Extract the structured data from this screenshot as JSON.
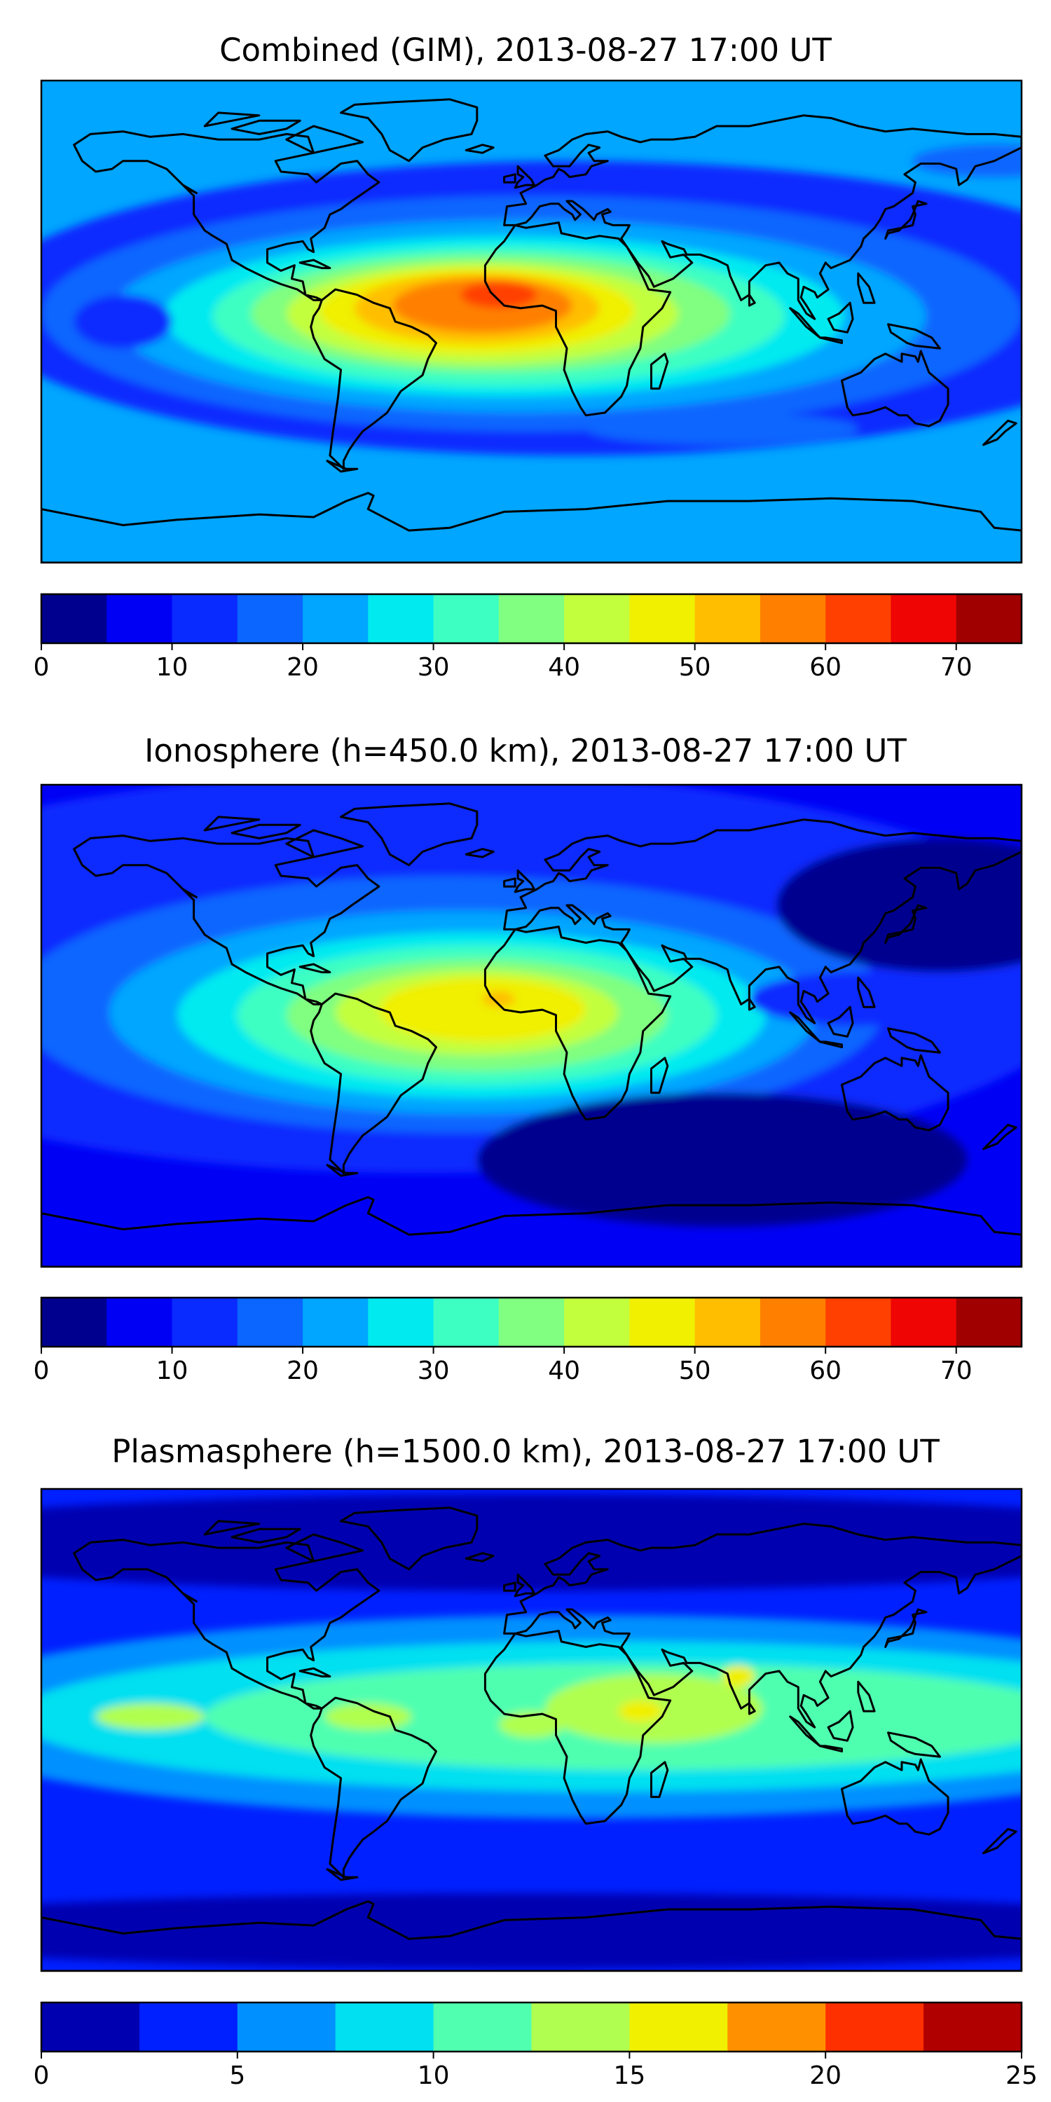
{
  "colors": {
    "jet15": [
      "#00008f",
      "#0000f5",
      "#0a2bff",
      "#0a66ff",
      "#00a6ff",
      "#00eaf0",
      "#3dffc2",
      "#80ff80",
      "#c2ff3d",
      "#f0f000",
      "#ffbf00",
      "#ff8000",
      "#ff4000",
      "#f00505",
      "#a00000"
    ],
    "jet10": [
      "#0000b0",
      "#0020ff",
      "#0090ff",
      "#00e0f0",
      "#50ffb0",
      "#b0ff50",
      "#f0f000",
      "#ff9000",
      "#ff3000",
      "#b00000"
    ]
  },
  "panels": [
    {
      "title": "Combined (GIM), 2013-08-27 17:00 UT",
      "colorbar": {
        "min": 0,
        "max": 75,
        "step": 5,
        "ticks": [
          "0",
          "10",
          "20",
          "30",
          "40",
          "50",
          "60",
          "70"
        ],
        "tick_values": [
          0,
          10,
          20,
          30,
          40,
          50,
          60,
          70
        ],
        "palette": "jet15"
      },
      "field": {
        "background": 4,
        "zones": [
          {
            "level": 2,
            "lon": 15,
            "lat": 5,
            "a_lon": 220,
            "a_lat": 55
          },
          {
            "level": 3,
            "lon": 0,
            "lat": 3,
            "a_lon": 180,
            "a_lat": 44
          },
          {
            "level": 4,
            "lon": -5,
            "lat": 2,
            "a_lon": 150,
            "a_lat": 36
          },
          {
            "level": 5,
            "lon": -10,
            "lat": 2,
            "a_lon": 125,
            "a_lat": 30
          },
          {
            "level": 6,
            "lon": -12,
            "lat": 2,
            "a_lon": 105,
            "a_lat": 26
          },
          {
            "level": 7,
            "lon": -15,
            "lat": 3,
            "a_lon": 88,
            "a_lat": 22
          },
          {
            "level": 8,
            "lon": -18,
            "lat": 3,
            "a_lon": 72,
            "a_lat": 19
          },
          {
            "level": 9,
            "lon": -20,
            "lat": 4,
            "a_lon": 58,
            "a_lat": 16
          },
          {
            "level": 10,
            "lon": -20,
            "lat": 5,
            "a_lon": 45,
            "a_lat": 13
          },
          {
            "level": 11,
            "lon": -18,
            "lat": 6,
            "a_lon": 33,
            "a_lat": 10
          },
          {
            "level": 12,
            "lon": -12,
            "lat": 10,
            "a_lon": 14,
            "a_lat": 5
          },
          {
            "level": 2,
            "lon": -150,
            "lat": 0,
            "a_lon": 18,
            "a_lat": 10
          },
          {
            "level": 3,
            "lon": 70,
            "lat": -40,
            "a_lon": 50,
            "a_lat": 6
          },
          {
            "level": 3,
            "lon": 170,
            "lat": 60,
            "a_lon": 30,
            "a_lat": 6
          }
        ]
      }
    },
    {
      "title": "Ionosphere  (h=450.0 km), 2013-08-27 17:00 UT",
      "colorbar": {
        "min": 0,
        "max": 75,
        "step": 5,
        "ticks": [
          "0",
          "10",
          "20",
          "30",
          "40",
          "50",
          "60",
          "70"
        ],
        "tick_values": [
          0,
          10,
          20,
          30,
          40,
          50,
          60,
          70
        ],
        "palette": "jet15"
      },
      "field": {
        "background": 1,
        "zones": [
          {
            "level": 2,
            "lon": -40,
            "lat": 20,
            "a_lon": 250,
            "a_lat": 75
          },
          {
            "level": 3,
            "lon": -30,
            "lat": 8,
            "a_lon": 160,
            "a_lat": 48
          },
          {
            "level": 4,
            "lon": -25,
            "lat": 5,
            "a_lon": 130,
            "a_lat": 38
          },
          {
            "level": 5,
            "lon": -22,
            "lat": 4,
            "a_lon": 108,
            "a_lat": 31
          },
          {
            "level": 6,
            "lon": -20,
            "lat": 4,
            "a_lon": 88,
            "a_lat": 26
          },
          {
            "level": 7,
            "lon": -20,
            "lat": 4,
            "a_lon": 70,
            "a_lat": 21
          },
          {
            "level": 8,
            "lon": -20,
            "lat": 5,
            "a_lon": 52,
            "a_lat": 16
          },
          {
            "level": 9,
            "lon": -18,
            "lat": 6,
            "a_lon": 38,
            "a_lat": 12
          },
          {
            "level": 10,
            "lon": -12,
            "lat": 10,
            "a_lon": 6,
            "a_lat": 3
          },
          {
            "level": 2,
            "lon": 120,
            "lat": 10,
            "a_lon": 40,
            "a_lat": 10
          },
          {
            "level": 0,
            "lon": 150,
            "lat": 45,
            "a_lon": 60,
            "a_lat": 25
          },
          {
            "level": 0,
            "lon": 70,
            "lat": -50,
            "a_lon": 90,
            "a_lat": 25
          }
        ]
      }
    },
    {
      "title": "Plasmasphere (h=1500.0 km), 2013-08-27 17:00 UT",
      "colorbar": {
        "min": 0,
        "max": 25,
        "step": 2.5,
        "ticks": [
          "0",
          "5",
          "10",
          "15",
          "20",
          "25"
        ],
        "tick_values": [
          0,
          5,
          10,
          15,
          20,
          25
        ],
        "palette": "jet10"
      },
      "field": {
        "background": 1,
        "zones": [
          {
            "level": 0,
            "lon": 0,
            "lat": 70,
            "a_lon": 260,
            "a_lat": 18
          },
          {
            "level": 0,
            "lon": 0,
            "lat": -75,
            "a_lon": 260,
            "a_lat": 14
          },
          {
            "level": 2,
            "lon": 20,
            "lat": 5,
            "a_lon": 250,
            "a_lat": 38
          },
          {
            "level": 3,
            "lon": 30,
            "lat": 5,
            "a_lon": 220,
            "a_lat": 28
          },
          {
            "level": 4,
            "lon": 40,
            "lat": 5,
            "a_lon": 160,
            "a_lat": 20
          },
          {
            "level": 5,
            "lon": 45,
            "lat": 8,
            "a_lon": 40,
            "a_lat": 13
          },
          {
            "level": 5,
            "lon": 0,
            "lat": 2,
            "a_lon": 12,
            "a_lat": 5
          },
          {
            "level": 5,
            "lon": -140,
            "lat": 5,
            "a_lon": 20,
            "a_lat": 5
          },
          {
            "level": 5,
            "lon": -60,
            "lat": 5,
            "a_lon": 16,
            "a_lat": 5
          },
          {
            "level": 6,
            "lon": 40,
            "lat": 7,
            "a_lon": 8,
            "a_lat": 4
          },
          {
            "level": 6,
            "lon": 76,
            "lat": 20,
            "a_lon": 6,
            "a_lat": 4
          }
        ]
      }
    }
  ]
}
